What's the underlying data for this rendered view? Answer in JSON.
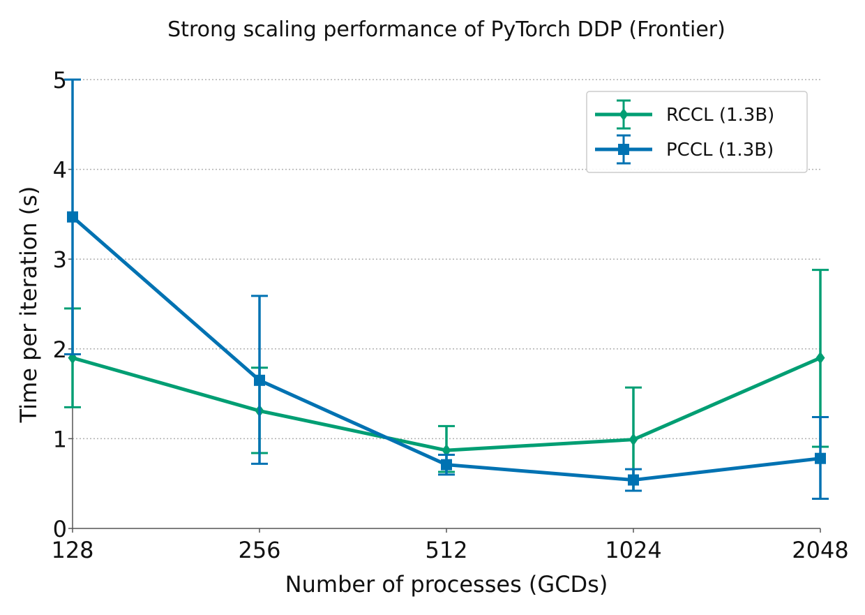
{
  "chart_data": {
    "type": "line",
    "title": "Strong scaling performance of PyTorch DDP (Frontier)",
    "xlabel": "Number of processes (GCDs)",
    "ylabel": "Time per iteration (s)",
    "x_scale": "log2",
    "categories": [
      "128",
      "256",
      "512",
      "1024",
      "2048"
    ],
    "x": [
      128,
      256,
      512,
      1024,
      2048
    ],
    "ylim": [
      0,
      5
    ],
    "yticks": [
      0,
      1,
      2,
      3,
      4,
      5
    ],
    "grid": "y-dotted",
    "legend_position": "top-right",
    "series": [
      {
        "name": "RCCL (1.3B)",
        "color": "#009e73",
        "marker": "diamond",
        "values": [
          1.9,
          1.31,
          0.87,
          0.99,
          1.9
        ],
        "err_low": [
          1.35,
          0.84,
          0.63,
          0.42,
          0.91
        ],
        "err_high": [
          2.45,
          1.79,
          1.14,
          1.57,
          2.88
        ]
      },
      {
        "name": "PCCL (1.3B)",
        "color": "#0072b2",
        "marker": "square",
        "values": [
          3.47,
          1.65,
          0.71,
          0.54,
          0.78
        ],
        "err_low": [
          1.94,
          0.72,
          0.6,
          0.42,
          0.33
        ],
        "err_high": [
          5.0,
          2.59,
          0.82,
          0.66,
          1.24
        ]
      }
    ]
  }
}
